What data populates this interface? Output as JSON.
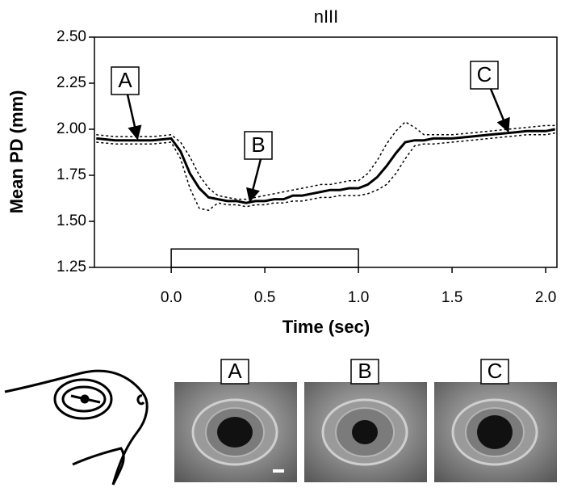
{
  "chart_data": {
    "type": "line",
    "title": "nIII",
    "xlabel": "Time (sec)",
    "ylabel": "Mean PD (mm)",
    "x": [
      -0.4,
      -0.3,
      -0.2,
      -0.1,
      0,
      0.05,
      0.1,
      0.15,
      0.2,
      0.25,
      0.3,
      0.35,
      0.4,
      0.45,
      0.5,
      0.55,
      0.6,
      0.65,
      0.7,
      0.75,
      0.8,
      0.85,
      0.9,
      0.95,
      1.0,
      1.05,
      1.1,
      1.15,
      1.2,
      1.25,
      1.3,
      1.35,
      1.4,
      1.5,
      1.6,
      1.7,
      1.8,
      1.9,
      2.0,
      2.05
    ],
    "series": [
      {
        "color": "#000000",
        "style": "solid",
        "values": [
          1.95,
          1.94,
          1.94,
          1.94,
          1.95,
          1.88,
          1.76,
          1.68,
          1.63,
          1.62,
          1.61,
          1.61,
          1.6,
          1.61,
          1.61,
          1.62,
          1.62,
          1.64,
          1.64,
          1.65,
          1.66,
          1.67,
          1.67,
          1.68,
          1.68,
          1.7,
          1.74,
          1.8,
          1.87,
          1.93,
          1.94,
          1.94,
          1.95,
          1.95,
          1.96,
          1.97,
          1.98,
          1.99,
          1.99,
          2.0
        ]
      },
      {
        "color": "#000000",
        "style": "dashed",
        "values": [
          1.97,
          1.96,
          1.96,
          1.96,
          1.97,
          1.93,
          1.85,
          1.75,
          1.68,
          1.64,
          1.63,
          1.62,
          1.62,
          1.63,
          1.64,
          1.65,
          1.66,
          1.67,
          1.68,
          1.69,
          1.7,
          1.7,
          1.71,
          1.72,
          1.72,
          1.76,
          1.83,
          1.92,
          1.99,
          2.04,
          2.01,
          1.97,
          1.97,
          1.97,
          1.98,
          1.99,
          2.0,
          2.01,
          2.02,
          2.02
        ]
      },
      {
        "color": "#000000",
        "style": "dashed",
        "values": [
          1.93,
          1.92,
          1.92,
          1.92,
          1.93,
          1.84,
          1.68,
          1.57,
          1.56,
          1.6,
          1.59,
          1.59,
          1.58,
          1.59,
          1.59,
          1.6,
          1.6,
          1.61,
          1.61,
          1.62,
          1.63,
          1.63,
          1.64,
          1.64,
          1.64,
          1.65,
          1.67,
          1.7,
          1.76,
          1.84,
          1.91,
          1.92,
          1.92,
          1.93,
          1.94,
          1.95,
          1.96,
          1.97,
          1.97,
          1.98
        ]
      }
    ],
    "xlim": [
      -0.41,
      2.06
    ],
    "xticks": [
      {
        "value": 0,
        "label": "0.0"
      },
      0.5,
      {
        "value": 1,
        "label": "1.0"
      },
      1.5,
      {
        "value": 2,
        "label": "2.0"
      }
    ],
    "ylim": [
      1.25,
      2.5
    ],
    "yticks": [
      1.25,
      {
        "value": 1.5,
        "label": "1.50"
      },
      1.75,
      {
        "value": 2,
        "label": "2.00"
      },
      2.25,
      {
        "value": 2.5,
        "label": "2.50"
      }
    ],
    "stimulus": {
      "x": [
        0,
        1
      ],
      "y": [
        1.25,
        1.35
      ]
    },
    "annotations": [
      {
        "text": "A",
        "x": -0.18,
        "y": 1.94
      },
      {
        "text": "B",
        "x": 0.42,
        "y": 1.6
      },
      {
        "text": "C",
        "x": 1.8,
        "y": 1.98
      }
    ]
  },
  "photo_panels": [
    "A",
    "B",
    "C"
  ]
}
